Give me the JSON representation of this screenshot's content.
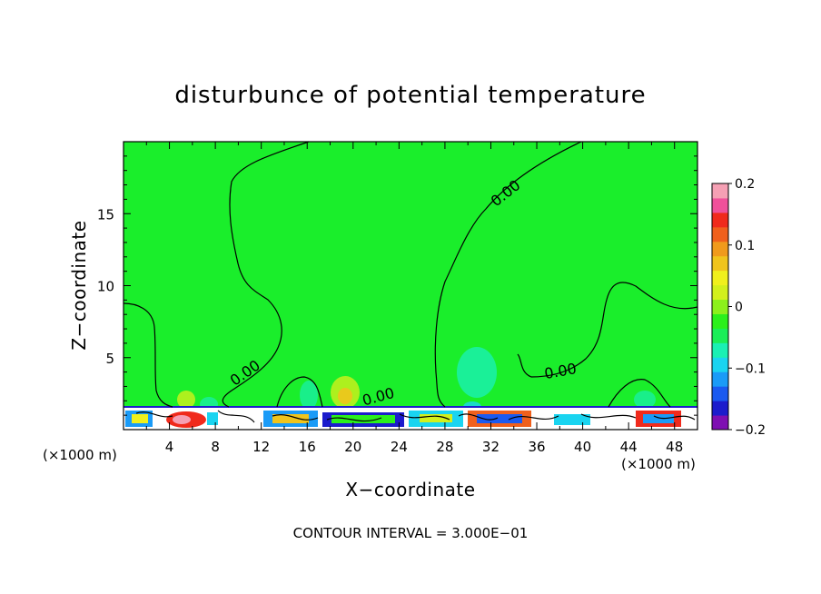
{
  "chart_data": {
    "type": "heatmap",
    "title": "disturbunce of potential temperature",
    "xlabel": "X−coordinate",
    "ylabel": "Z−coordinate",
    "x_unit_label_left": "(×1000 m)",
    "x_unit_label_right": "(×1000 m)",
    "footer": "CONTOUR INTERVAL = 3.000E−01",
    "xlim": [
      0,
      50
    ],
    "ylim": [
      0,
      20
    ],
    "x_ticks": [
      4,
      8,
      12,
      16,
      20,
      24,
      28,
      32,
      36,
      40,
      44,
      48
    ],
    "y_ticks": [
      5,
      10,
      15
    ],
    "contour_labels": [
      {
        "text": "0.00",
        "x": 31.7,
        "y": 16.0
      },
      {
        "text": "0.00",
        "x": 10.8,
        "y": 4.0
      },
      {
        "text": "0.00",
        "x": 22.3,
        "y": 2.3
      },
      {
        "text": "0.00",
        "x": 38.8,
        "y": 3.8
      }
    ],
    "colorbar": {
      "min": -0.2,
      "max": 0.2,
      "tick_values": [
        0.2,
        0.1,
        0,
        -0.1,
        -0.2
      ],
      "tick_labels": [
        "0.2",
        "0.1",
        "0",
        "−0.1",
        "−0.2"
      ],
      "colors": [
        "#7e0fb2",
        "#1c1ccc",
        "#1a5af0",
        "#1a9bf7",
        "#1ad4f0",
        "#1af0b4",
        "#1aee58",
        "#2bf01c",
        "#8cf01c",
        "#d2f01c",
        "#f0f01c",
        "#f0c41c",
        "#f09a1c",
        "#f0601c",
        "#f02a1c",
        "#f0509a",
        "#f5a0b4"
      ]
    },
    "background_value_color": "#1aee2b"
  }
}
